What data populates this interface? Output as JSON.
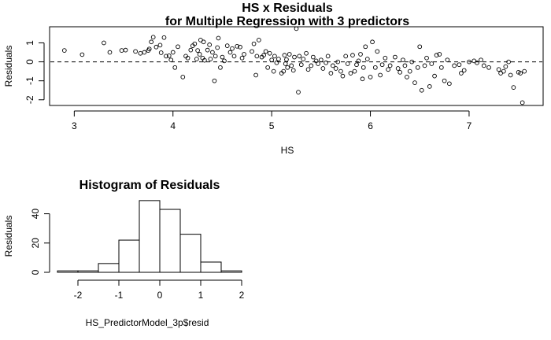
{
  "chart_data": [
    {
      "type": "scatter",
      "title": "HS x Residuals",
      "subtitle": "for Multiple Regression with 3 predictors",
      "xlabel": "HS",
      "ylabel": "Residuals",
      "xlim": [
        2.75,
        7.75
      ],
      "ylim": [
        -2.3,
        1.85
      ],
      "xticks": [
        3,
        4,
        5,
        6,
        7
      ],
      "yticks": [
        -2,
        -1,
        0,
        1
      ],
      "reference_line": {
        "y": 0,
        "style": "dashed"
      },
      "marker": "open-circle",
      "points": [
        [
          2.9,
          0.6
        ],
        [
          3.08,
          0.38
        ],
        [
          3.3,
          1.0
        ],
        [
          3.36,
          0.5
        ],
        [
          3.48,
          0.6
        ],
        [
          3.52,
          0.62
        ],
        [
          3.62,
          0.55
        ],
        [
          3.67,
          0.45
        ],
        [
          3.71,
          0.5
        ],
        [
          3.75,
          0.6
        ],
        [
          3.76,
          0.68
        ],
        [
          3.78,
          1.05
        ],
        [
          3.8,
          1.3
        ],
        [
          3.83,
          0.78
        ],
        [
          3.87,
          0.88
        ],
        [
          3.88,
          0.48
        ],
        [
          3.91,
          1.28
        ],
        [
          3.93,
          0.3
        ],
        [
          3.96,
          0.32
        ],
        [
          3.98,
          0.1
        ],
        [
          4.0,
          0.5
        ],
        [
          4.02,
          -0.3
        ],
        [
          4.05,
          0.8
        ],
        [
          4.1,
          -0.8
        ],
        [
          4.13,
          0.3
        ],
        [
          4.15,
          0.2
        ],
        [
          4.18,
          0.62
        ],
        [
          4.2,
          0.85
        ],
        [
          4.22,
          0.95
        ],
        [
          4.24,
          0.15
        ],
        [
          4.25,
          0.6
        ],
        [
          4.27,
          0.4
        ],
        [
          4.28,
          1.15
        ],
        [
          4.3,
          0.2
        ],
        [
          4.31,
          1.05
        ],
        [
          4.32,
          0.08
        ],
        [
          4.35,
          0.62
        ],
        [
          4.37,
          0.9
        ],
        [
          4.38,
          0.15
        ],
        [
          4.4,
          0.5
        ],
        [
          4.42,
          -1.0
        ],
        [
          4.43,
          0.3
        ],
        [
          4.45,
          0.75
        ],
        [
          4.46,
          1.25
        ],
        [
          4.48,
          -0.3
        ],
        [
          4.5,
          0.25
        ],
        [
          4.52,
          0.05
        ],
        [
          4.55,
          0.85
        ],
        [
          4.58,
          0.5
        ],
        [
          4.6,
          0.7
        ],
        [
          4.62,
          0.3
        ],
        [
          4.65,
          0.82
        ],
        [
          4.68,
          0.78
        ],
        [
          4.7,
          0.2
        ],
        [
          4.72,
          0.4
        ],
        [
          4.8,
          0.55
        ],
        [
          4.82,
          0.95
        ],
        [
          4.84,
          -0.7
        ],
        [
          4.85,
          0.3
        ],
        [
          4.87,
          1.15
        ],
        [
          4.9,
          0.25
        ],
        [
          4.92,
          0.35
        ],
        [
          4.94,
          0.55
        ],
        [
          4.96,
          -0.3
        ],
        [
          4.98,
          0.45
        ],
        [
          5.0,
          0.1
        ],
        [
          5.02,
          -0.5
        ],
        [
          5.03,
          0.3
        ],
        [
          5.05,
          -0.05
        ],
        [
          5.07,
          0.15
        ],
        [
          5.1,
          -0.6
        ],
        [
          5.12,
          -0.5
        ],
        [
          5.13,
          0.35
        ],
        [
          5.14,
          -0.1
        ],
        [
          5.15,
          0.12
        ],
        [
          5.16,
          -0.3
        ],
        [
          5.18,
          0.4
        ],
        [
          5.2,
          -0.2
        ],
        [
          5.22,
          -0.45
        ],
        [
          5.23,
          0.25
        ],
        [
          5.25,
          1.75
        ],
        [
          5.27,
          -1.6
        ],
        [
          5.28,
          0.3
        ],
        [
          5.3,
          -0.15
        ],
        [
          5.32,
          0.15
        ],
        [
          5.35,
          0.45
        ],
        [
          5.37,
          -0.4
        ],
        [
          5.4,
          -0.2
        ],
        [
          5.42,
          0.25
        ],
        [
          5.45,
          0.05
        ],
        [
          5.47,
          -0.1
        ],
        [
          5.5,
          0.1
        ],
        [
          5.52,
          -0.35
        ],
        [
          5.55,
          -0.05
        ],
        [
          5.57,
          0.3
        ],
        [
          5.6,
          -0.6
        ],
        [
          5.62,
          -0.2
        ],
        [
          5.65,
          -0.35
        ],
        [
          5.67,
          0.0
        ],
        [
          5.7,
          -0.5
        ],
        [
          5.72,
          -0.75
        ],
        [
          5.75,
          0.3
        ],
        [
          5.77,
          -0.1
        ],
        [
          5.8,
          -0.6
        ],
        [
          5.82,
          0.35
        ],
        [
          5.84,
          -0.5
        ],
        [
          5.86,
          -0.15
        ],
        [
          5.88,
          0.05
        ],
        [
          5.9,
          0.4
        ],
        [
          5.92,
          -0.9
        ],
        [
          5.93,
          -0.3
        ],
        [
          5.95,
          0.8
        ],
        [
          5.97,
          0.15
        ],
        [
          6.0,
          -0.8
        ],
        [
          6.02,
          1.05
        ],
        [
          6.05,
          -0.3
        ],
        [
          6.07,
          0.55
        ],
        [
          6.1,
          -0.7
        ],
        [
          6.12,
          -0.15
        ],
        [
          6.15,
          0.2
        ],
        [
          6.18,
          -0.4
        ],
        [
          6.2,
          -0.2
        ],
        [
          6.25,
          0.25
        ],
        [
          6.28,
          -0.35
        ],
        [
          6.3,
          -0.55
        ],
        [
          6.33,
          0.1
        ],
        [
          6.35,
          -0.2
        ],
        [
          6.37,
          -0.8
        ],
        [
          6.4,
          -0.5
        ],
        [
          6.42,
          0.0
        ],
        [
          6.45,
          -1.1
        ],
        [
          6.48,
          -0.3
        ],
        [
          6.5,
          0.8
        ],
        [
          6.52,
          -1.5
        ],
        [
          6.55,
          -0.2
        ],
        [
          6.57,
          0.2
        ],
        [
          6.6,
          -1.3
        ],
        [
          6.62,
          -0.1
        ],
        [
          6.65,
          -0.75
        ],
        [
          6.67,
          0.35
        ],
        [
          6.7,
          0.4
        ],
        [
          6.72,
          -0.3
        ],
        [
          6.75,
          -1.0
        ],
        [
          6.78,
          0.1
        ],
        [
          6.8,
          -1.15
        ],
        [
          6.85,
          -0.2
        ],
        [
          6.9,
          -0.15
        ],
        [
          6.92,
          -0.6
        ],
        [
          6.95,
          -0.45
        ],
        [
          7.0,
          0.0
        ],
        [
          7.05,
          0.05
        ],
        [
          7.08,
          -0.05
        ],
        [
          7.12,
          0.1
        ],
        [
          7.15,
          -0.2
        ],
        [
          7.2,
          -0.3
        ],
        [
          7.3,
          -0.4
        ],
        [
          7.32,
          -0.6
        ],
        [
          7.35,
          -0.5
        ],
        [
          7.37,
          -0.25
        ],
        [
          7.4,
          0.0
        ],
        [
          7.42,
          -0.7
        ],
        [
          7.45,
          -1.35
        ],
        [
          7.5,
          -0.55
        ],
        [
          7.52,
          -0.6
        ],
        [
          7.54,
          -2.15
        ],
        [
          7.56,
          -0.5
        ]
      ]
    },
    {
      "type": "bar",
      "title": "Histogram of Residuals",
      "xlabel": "HS_PredictorModel_3p$resid",
      "ylabel": "Residuals",
      "xlim": [
        -2.5,
        2.0
      ],
      "ylim": [
        0,
        50
      ],
      "xticks": [
        -2,
        -1,
        0,
        1,
        2
      ],
      "yticks": [
        0,
        20,
        40
      ],
      "bins": [
        {
          "from": -2.5,
          "to": -2.0,
          "count": 1
        },
        {
          "from": -2.0,
          "to": -1.5,
          "count": 1
        },
        {
          "from": -1.5,
          "to": -1.0,
          "count": 6
        },
        {
          "from": -1.0,
          "to": -0.5,
          "count": 22
        },
        {
          "from": -0.5,
          "to": 0.0,
          "count": 49
        },
        {
          "from": 0.0,
          "to": 0.5,
          "count": 43
        },
        {
          "from": 0.5,
          "to": 1.0,
          "count": 26
        },
        {
          "from": 1.0,
          "to": 1.5,
          "count": 7
        },
        {
          "from": 1.5,
          "to": 2.0,
          "count": 1
        }
      ]
    }
  ]
}
